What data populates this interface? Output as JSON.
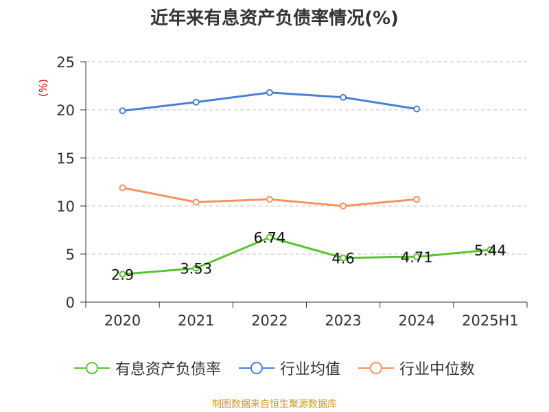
{
  "title": "近年来有息资产负债率情况(%)",
  "source": "制图数据来自恒生聚源数据库",
  "chart_data": {
    "type": "line",
    "title": "近年来有息资产负债率情况(%)",
    "ylabel": "(%)",
    "ylim": [
      0,
      25
    ],
    "yticks": [
      0,
      5,
      10,
      15,
      20,
      25
    ],
    "categories": [
      "2020",
      "2021",
      "2022",
      "2023",
      "2024",
      "2025H1"
    ],
    "grid": true,
    "legend_position": "bottom",
    "series": [
      {
        "name": "有息资产负债率",
        "color": "#5ac42e",
        "values": [
          2.9,
          3.53,
          6.74,
          4.6,
          4.71,
          5.44
        ],
        "labels": [
          "2.9",
          "3.53",
          "6.74",
          "4.6",
          "4.71",
          "5.44"
        ]
      },
      {
        "name": "行业均值",
        "color": "#4a7fd4",
        "values": [
          19.9,
          20.8,
          21.8,
          21.3,
          20.1,
          null
        ]
      },
      {
        "name": "行业中位数",
        "color": "#f5925f",
        "values": [
          11.9,
          10.4,
          10.7,
          10.0,
          10.7,
          null
        ]
      }
    ]
  }
}
